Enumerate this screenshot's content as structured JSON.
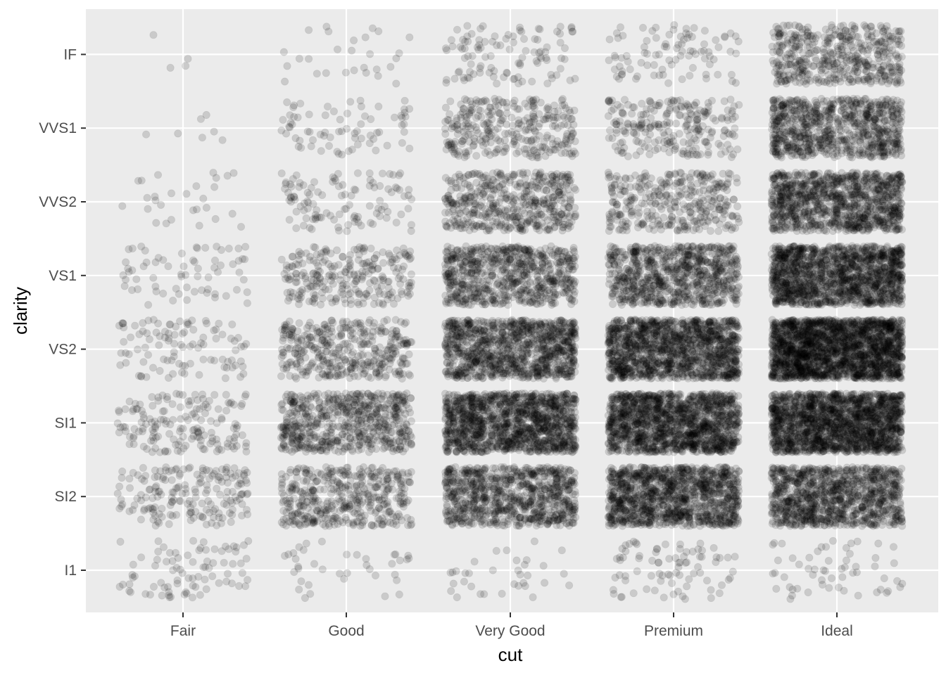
{
  "chart_data": {
    "type": "scatter",
    "title": "",
    "xlabel": "cut",
    "ylabel": "clarity",
    "x_categories": [
      "Fair",
      "Good",
      "Very Good",
      "Premium",
      "Ideal"
    ],
    "y_categories": [
      "I1",
      "SI2",
      "SI1",
      "VS2",
      "VS1",
      "VVS2",
      "VVS1",
      "IF"
    ],
    "jitter": {
      "width": 0.4,
      "height": 0.4
    },
    "alpha": 0.1,
    "point_color": "#000000",
    "panel_background": "#ebebeb",
    "grid_color": "#ffffff",
    "grid": true,
    "legend": "none",
    "counts": [
      {
        "cut": "Fair",
        "values": [
          210,
          466,
          408,
          261,
          170,
          69,
          17,
          9
        ]
      },
      {
        "cut": "Good",
        "values": [
          96,
          1081,
          1560,
          978,
          648,
          286,
          186,
          71
        ]
      },
      {
        "cut": "Very Good",
        "values": [
          84,
          2100,
          3240,
          2591,
          1775,
          1235,
          789,
          268
        ]
      },
      {
        "cut": "Premium",
        "values": [
          205,
          2949,
          3575,
          3357,
          1989,
          870,
          616,
          230
        ]
      },
      {
        "cut": "Ideal",
        "values": [
          146,
          2598,
          4282,
          5071,
          3589,
          2606,
          2047,
          1212
        ]
      }
    ]
  }
}
